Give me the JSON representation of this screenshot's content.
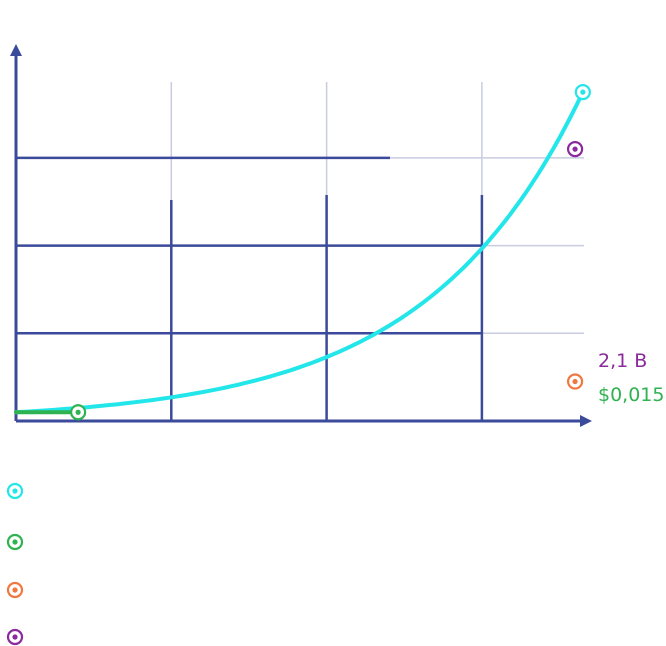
{
  "chart_data": {
    "type": "line",
    "title": "",
    "xlabel": "",
    "ylabel": "",
    "x_grid_divisions": 4,
    "y_grid_divisions": 4,
    "xlim": [
      0,
      4
    ],
    "ylim": [
      0,
      4
    ],
    "grid": true,
    "series": [
      {
        "color": "#22e6ea",
        "shape": "exponential-growth",
        "x": [
          0,
          0.5,
          1.0,
          1.5,
          2.0,
          2.5,
          3.0,
          3.5,
          3.65
        ],
        "y": [
          0.1,
          0.2,
          0.35,
          0.55,
          0.8,
          1.25,
          2.0,
          3.4,
          3.75
        ]
      },
      {
        "color": "#2fb350",
        "shape": "flat-start",
        "x": [
          0,
          0.4
        ],
        "y": [
          0.1,
          0.1
        ]
      }
    ],
    "markers": [
      {
        "color": "#22e6ea",
        "x": 3.65,
        "y": 3.75
      },
      {
        "color": "#2fb350",
        "x": 0.4,
        "y": 0.1
      },
      {
        "color": "#8b2a9c",
        "x": 3.6,
        "y": 3.1
      },
      {
        "color": "#f07840",
        "x": 3.6,
        "y": 0.45
      }
    ],
    "labels": {
      "purple_value": "2,1 B",
      "green_value": "$0,015"
    },
    "legend": [
      {
        "color": "#22e6ea"
      },
      {
        "color": "#2fb350"
      },
      {
        "color": "#f07840"
      },
      {
        "color": "#8b2a9c"
      }
    ],
    "colors": {
      "axis": "#3b4a9a",
      "grid_light": "#c9cce0",
      "purple_text": "#8b2a9c",
      "green_text": "#2fb350"
    }
  }
}
